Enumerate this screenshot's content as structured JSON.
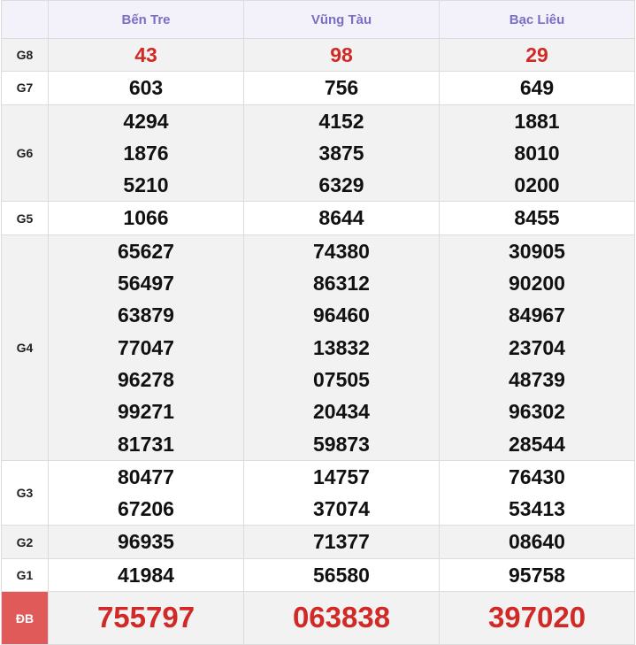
{
  "provinces": [
    "Bến Tre",
    "Vũng Tàu",
    "Bạc Liêu"
  ],
  "colors": {
    "header_text": "#7a6fc4",
    "red_number": "#d12a26",
    "db_label_bg": "#e05a5a"
  },
  "prizes": [
    {
      "label": "G8",
      "values": [
        [
          "43"
        ],
        [
          "98"
        ],
        [
          "29"
        ]
      ]
    },
    {
      "label": "G7",
      "values": [
        [
          "603"
        ],
        [
          "756"
        ],
        [
          "649"
        ]
      ]
    },
    {
      "label": "G6",
      "values": [
        [
          "4294",
          "1876",
          "5210"
        ],
        [
          "4152",
          "3875",
          "6329"
        ],
        [
          "1881",
          "8010",
          "0200"
        ]
      ]
    },
    {
      "label": "G5",
      "values": [
        [
          "1066"
        ],
        [
          "8644"
        ],
        [
          "8455"
        ]
      ]
    },
    {
      "label": "G4",
      "values": [
        [
          "65627",
          "56497",
          "63879",
          "77047",
          "96278",
          "99271",
          "81731"
        ],
        [
          "74380",
          "86312",
          "96460",
          "13832",
          "07505",
          "20434",
          "59873"
        ],
        [
          "30905",
          "90200",
          "84967",
          "23704",
          "48739",
          "96302",
          "28544"
        ]
      ]
    },
    {
      "label": "G3",
      "values": [
        [
          "80477",
          "67206"
        ],
        [
          "14757",
          "37074"
        ],
        [
          "76430",
          "53413"
        ]
      ]
    },
    {
      "label": "G2",
      "values": [
        [
          "96935"
        ],
        [
          "71377"
        ],
        [
          "08640"
        ]
      ]
    },
    {
      "label": "G1",
      "values": [
        [
          "41984"
        ],
        [
          "56580"
        ],
        [
          "95758"
        ]
      ]
    },
    {
      "label": "ĐB",
      "values": [
        [
          "755797"
        ],
        [
          "063838"
        ],
        [
          "397020"
        ]
      ]
    }
  ]
}
